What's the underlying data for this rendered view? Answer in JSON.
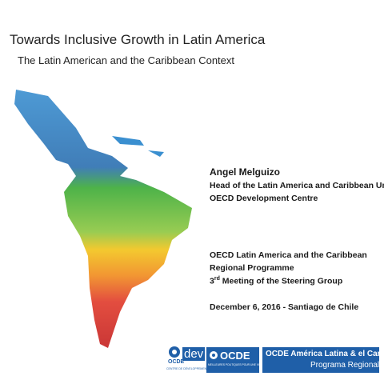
{
  "header": {
    "title": "Towards Inclusive Growth in Latin America",
    "subtitle": "The Latin American and the Caribbean Context"
  },
  "presenter": {
    "name": "Angel Melguizo",
    "roles": [
      "Head of the Latin America and Caribbean Unit",
      "OECD Development Centre"
    ]
  },
  "event": {
    "lines": [
      "OECD Latin America and the Caribbean",
      "Regional Programme"
    ],
    "meeting_number": "3",
    "meeting_suffix": "rd",
    "meeting_text": " Meeting of the Steering Group",
    "date": "December 6, 2016 - Santiago de Chile"
  },
  "logos": {
    "ocde_dev": {
      "ocde": "OCDE",
      "dev": "dev",
      "caption": "CENTRE DE DÉVELOPPEMENT"
    },
    "ocde_main": {
      "name": "OCDE",
      "motto": "MEILLEURES POLITIQUES POUR UNE VIE MEILLEURE"
    },
    "regional": {
      "name": "OCDE América Latina & el Caribe",
      "programme": "Programa Regional"
    }
  }
}
